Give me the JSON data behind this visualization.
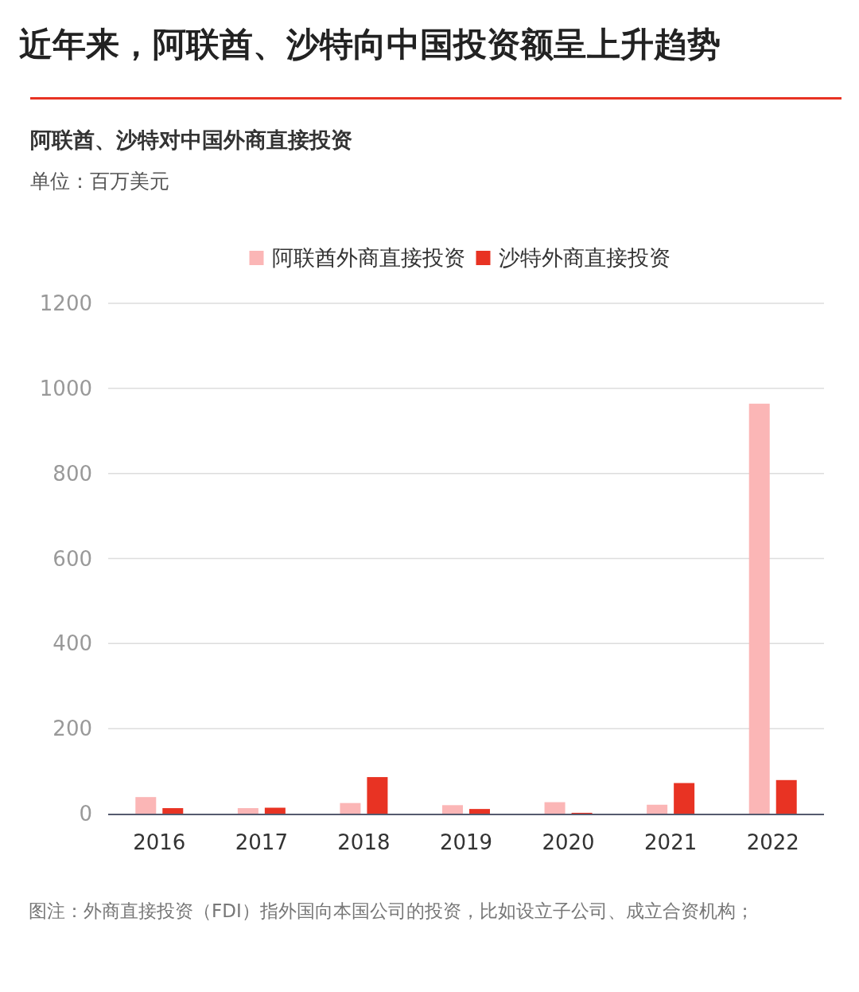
{
  "chart_data": {
    "type": "bar",
    "title": "近年来，阿联酋、沙特向中国投资额呈上升趋势",
    "subtitle": "阿联酋、沙特对中国外商直接投资",
    "ylabel": "单位：百万美元",
    "categories": [
      "2016",
      "2017",
      "2018",
      "2019",
      "2020",
      "2021",
      "2022"
    ],
    "series": [
      {
        "name": "阿联酋外商直接投资",
        "color": "#fbb6b6",
        "values": [
          39,
          13,
          25,
          20,
          27,
          21,
          964
        ]
      },
      {
        "name": "沙特外商直接投资",
        "color": "#e83323",
        "values": [
          13,
          14,
          86,
          11,
          2,
          72,
          79
        ]
      }
    ],
    "ylim": [
      0,
      1200
    ],
    "yticks": [
      0,
      200,
      400,
      600,
      800,
      1000,
      1200
    ],
    "grid": "y",
    "legend": "top",
    "annotations": [
      "图注：外商直接投资（FDI）指外国向本国公司的投资，比如设立子公司、成立合资机构；"
    ]
  }
}
